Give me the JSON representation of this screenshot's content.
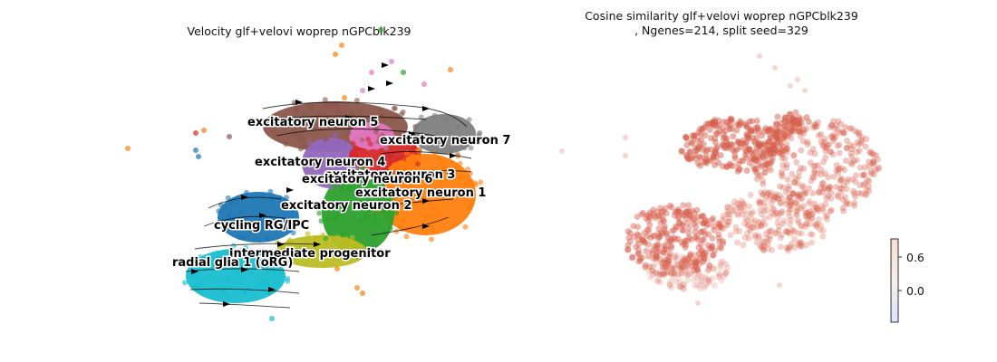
{
  "chart_data": [
    {
      "type": "scatter",
      "title": "Velocity glf+velovi woprep nGPCblk239",
      "xlabel": "",
      "ylabel": "",
      "grid": false,
      "axes_visible": false,
      "cluster_labels": [
        {
          "name": "excitatory neuron 5",
          "color": "#8c564b"
        },
        {
          "name": "excitatory neuron 7",
          "color": "#7f7f7f"
        },
        {
          "name": "excitatory neuron 4",
          "color": "#9467bd"
        },
        {
          "name": "excitatory neuron 3",
          "color": "#d62728"
        },
        {
          "name": "excitatory neuron 6",
          "color": "#e377c2"
        },
        {
          "name": "excitatory neuron 1",
          "color": "#ff7f0e"
        },
        {
          "name": "excitatory neuron 2",
          "color": "#2ca02c"
        },
        {
          "name": "cycling RG/IPC",
          "color": "#1f77b4"
        },
        {
          "name": "intermediate progenitor",
          "color": "#bcbd22"
        },
        {
          "name": "radial glia 1 (oRG)",
          "color": "#17becf"
        }
      ],
      "overlay": "velocity streamlines with arrowheads"
    },
    {
      "type": "scatter",
      "title": "Cosine similarity glf+velovi woprep nGPCblk239\n, Ngenes=214, split seed=329",
      "title_lines": [
        "Cosine similarity glf+velovi woprep nGPCblk239",
        ", Ngenes=214, split seed=329"
      ],
      "xlabel": "",
      "ylabel": "",
      "grid": false,
      "axes_visible": false,
      "colormap": "coolwarm",
      "colorbar": {
        "ticks": [
          0.6,
          0.0
        ],
        "tick_labels": [
          "0.6",
          "0.0"
        ],
        "placement": "right"
      },
      "point_color": "#d6604d"
    }
  ]
}
